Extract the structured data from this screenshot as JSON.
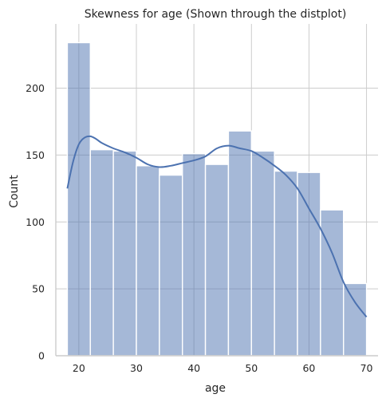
{
  "chart_data": {
    "type": "histogram",
    "title": "Skewness for age (Shown through the distplot)",
    "xlabel": "age",
    "ylabel": "Count",
    "xlim": [
      16.0,
      72.0
    ],
    "ylim": [
      0,
      248
    ],
    "xticks": [
      20,
      30,
      40,
      50,
      60,
      70
    ],
    "yticks": [
      0,
      50,
      100,
      150,
      200
    ],
    "grid": true,
    "bar_color": "#4c72b0",
    "bins": [
      {
        "start": 18,
        "end": 22,
        "count": 234
      },
      {
        "start": 22,
        "end": 26,
        "count": 154
      },
      {
        "start": 26,
        "end": 30,
        "count": 153
      },
      {
        "start": 30,
        "end": 34,
        "count": 142
      },
      {
        "start": 34,
        "end": 38,
        "count": 135
      },
      {
        "start": 38,
        "end": 42,
        "count": 151
      },
      {
        "start": 42,
        "end": 46,
        "count": 143
      },
      {
        "start": 46,
        "end": 50,
        "count": 168
      },
      {
        "start": 50,
        "end": 54,
        "count": 153
      },
      {
        "start": 54,
        "end": 58,
        "count": 138
      },
      {
        "start": 58,
        "end": 62,
        "count": 137
      },
      {
        "start": 62,
        "end": 66,
        "count": 109
      },
      {
        "start": 66,
        "end": 70,
        "count": 54
      }
    ],
    "kde": {
      "x": [
        18,
        19,
        20,
        21,
        22,
        23,
        24,
        26,
        28,
        30,
        32,
        34,
        36,
        38,
        40,
        42,
        44,
        46,
        48,
        50,
        52,
        54,
        56,
        58,
        60,
        62,
        64,
        66,
        68,
        70
      ],
      "y": [
        125,
        145,
        158,
        163,
        164,
        162,
        159,
        155,
        152,
        148,
        143,
        141,
        142,
        144,
        146,
        149,
        155,
        157,
        155,
        153,
        148,
        142,
        135,
        125,
        110,
        95,
        77,
        55,
        40,
        29
      ]
    }
  }
}
